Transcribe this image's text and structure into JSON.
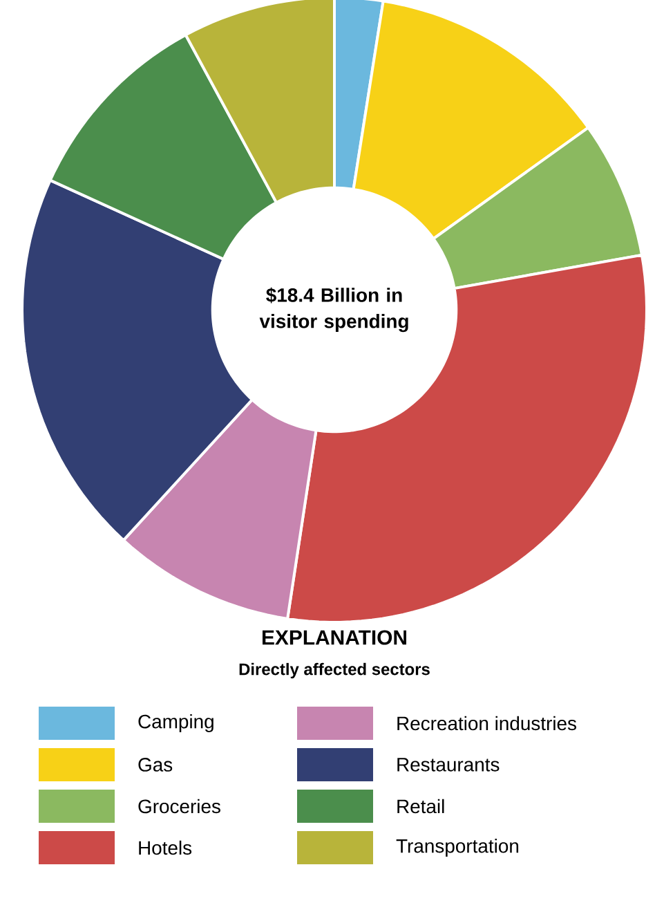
{
  "chart_data": {
    "type": "donut",
    "title": "$18.4 Billion in visitor spending",
    "legend_title": "EXPLANATION",
    "subtitle": "Directly affected sectors",
    "categories": [
      "Camping",
      "Gas",
      "Groceries",
      "Hotels",
      "Recreation industries",
      "Restaurants",
      "Retail",
      "Transportation"
    ],
    "values": [
      2.5,
      12.6,
      7.1,
      30.2,
      9.4,
      20.0,
      10.3,
      7.9
    ],
    "colors": [
      "#6bb8de",
      "#f7d117",
      "#8bb960",
      "#cc4a48",
      "#c785b0",
      "#323f73",
      "#4b8e4c",
      "#b8b43a"
    ],
    "legend": "bottom"
  }
}
